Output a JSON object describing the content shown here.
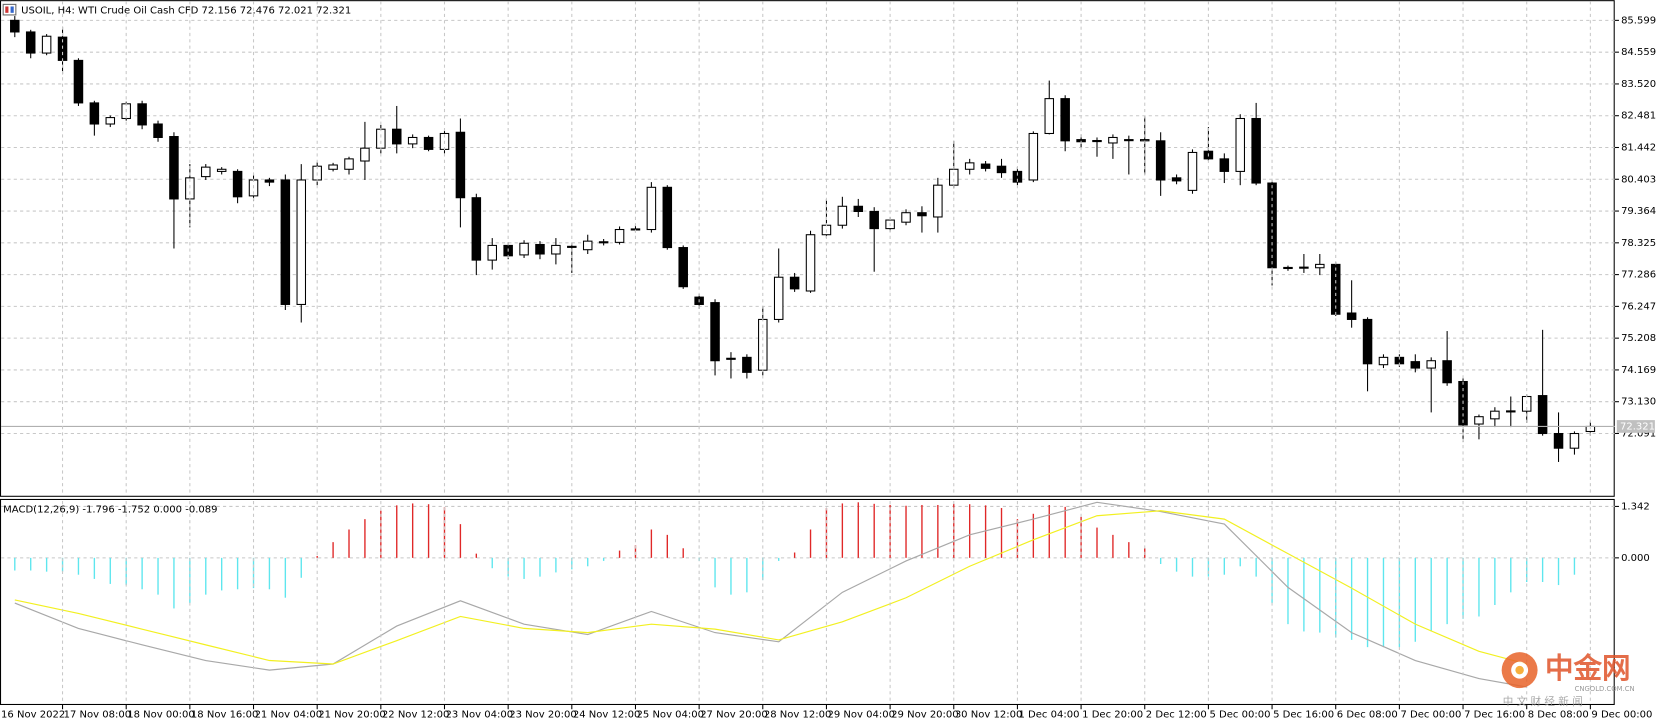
{
  "chart_data": [
    {
      "type": "candlestick",
      "title": "USOIL, H4:  WTI Crude Oil Cash CFD   72.156 72.476 72.021 72.321",
      "ylim": [
        70.02,
        86.26
      ],
      "yticks": [
        85.599,
        84.559,
        {
          "value": 83.52,
          "label": "83.520"
        },
        82.481,
        81.442,
        80.403,
        79.364,
        78.325,
        77.286,
        76.247,
        75.208,
        74.169,
        {
          "value": 73.13,
          "label": "73.130"
        },
        72.091
      ],
      "grid": true,
      "current_price": 72.321,
      "colors": {
        "up": "#ffffff",
        "down": "#000000",
        "outline": "#000000",
        "price_line": "#b0b0b0"
      },
      "open": [
        85.6,
        85.22,
        84.53,
        85.05,
        84.29,
        82.9,
        82.21,
        82.39,
        82.87,
        82.21,
        81.8,
        79.76,
        80.49,
        80.66,
        80.66,
        79.86,
        80.38,
        80.38,
        76.31,
        80.38,
        80.73,
        80.73,
        81.0,
        81.42,
        82.04,
        81.56,
        81.77,
        81.38,
        81.94,
        79.8,
        77.76,
        78.24,
        77.93,
        78.27,
        77.96,
        78.19,
        78.1,
        78.34,
        78.34,
        78.76,
        78.76,
        80.14,
        78.17,
        76.55,
        76.37,
        74.55,
        74.58,
        74.16,
        75.82,
        77.2,
        76.75,
        78.59,
        78.9,
        79.52,
        79.35,
        78.79,
        79.0,
        79.31,
        79.17,
        80.21,
        80.73,
        80.9,
        80.83,
        80.66,
        80.38,
        81.9,
        83.04,
        81.7,
        81.67,
        81.59,
        81.7,
        81.66,
        81.66,
        80.45,
        80.04,
        81.32,
        81.07,
        80.66,
        82.39,
        80.28,
        77.52,
        77.51,
        77.51,
        77.62,
        76.03,
        75.82,
        74.34,
        74.58,
        74.44,
        74.23,
        74.47,
        73.79,
        72.4,
        72.57,
        72.81,
        72.82,
        73.33,
        72.09,
        71.61,
        72.156
      ],
      "high": [
        85.74,
        85.29,
        85.15,
        85.39,
        84.36,
        82.97,
        82.49,
        82.94,
        82.97,
        82.32,
        81.94,
        80.9,
        80.9,
        80.8,
        80.73,
        80.56,
        80.45,
        80.56,
        80.9,
        80.97,
        80.94,
        81.14,
        82.28,
        82.18,
        82.8,
        81.87,
        81.83,
        82.01,
        82.39,
        79.93,
        78.48,
        78.34,
        78.41,
        78.38,
        78.48,
        78.31,
        78.59,
        78.45,
        78.86,
        78.9,
        80.31,
        80.21,
        78.24,
        76.65,
        76.48,
        74.75,
        74.68,
        76.24,
        78.14,
        77.34,
        78.72,
        79.76,
        79.83,
        79.76,
        79.49,
        79.17,
        79.42,
        79.52,
        80.45,
        81.66,
        81.07,
        81.0,
        81.07,
        80.8,
        81.97,
        83.63,
        83.15,
        81.87,
        81.77,
        81.87,
        81.83,
        82.46,
        81.94,
        80.56,
        81.38,
        82.11,
        81.25,
        82.53,
        82.9,
        80.38,
        77.58,
        77.96,
        77.96,
        77.69,
        77.1,
        75.89,
        74.68,
        74.68,
        74.68,
        74.58,
        75.44,
        73.89,
        72.71,
        72.95,
        73.3,
        73.37,
        75.48,
        72.78,
        72.16,
        72.476
      ],
      "low": [
        85.05,
        84.36,
        84.46,
        83.84,
        82.8,
        81.83,
        82.11,
        82.32,
        82.04,
        81.63,
        78.14,
        78.83,
        80.38,
        80.56,
        79.62,
        79.69,
        80.18,
        76.13,
        75.72,
        80.21,
        80.66,
        80.56,
        80.38,
        81.25,
        81.25,
        81.42,
        81.32,
        81.25,
        78.83,
        77.27,
        77.45,
        77.79,
        77.83,
        77.79,
        77.62,
        77.34,
        77.96,
        78.24,
        78.27,
        78.66,
        78.66,
        78.1,
        76.82,
        76.17,
        73.99,
        73.89,
        73.89,
        73.99,
        75.72,
        76.72,
        76.69,
        78.48,
        78.79,
        79.17,
        77.38,
        78.69,
        78.9,
        78.66,
        78.66,
        80.11,
        80.56,
        80.66,
        80.45,
        80.21,
        80.31,
        81.87,
        81.32,
        81.42,
        81.14,
        81.07,
        80.56,
        80.56,
        79.86,
        80.24,
        79.93,
        81.0,
        80.28,
        80.21,
        80.21,
        76.93,
        77.41,
        77.34,
        77.27,
        75.93,
        75.55,
        73.47,
        74.23,
        74.27,
        74.09,
        72.78,
        73.65,
        71.81,
        71.9,
        72.3,
        72.3,
        72.44,
        72.02,
        71.16,
        71.4,
        72.021
      ],
      "close": [
        85.22,
        84.53,
        85.08,
        84.29,
        82.9,
        82.21,
        82.42,
        82.87,
        82.18,
        81.77,
        79.76,
        80.45,
        80.8,
        80.73,
        79.83,
        80.38,
        80.31,
        76.31,
        80.38,
        80.83,
        80.87,
        81.07,
        81.42,
        82.04,
        81.56,
        81.77,
        81.38,
        81.9,
        79.8,
        77.76,
        78.24,
        77.9,
        78.31,
        77.96,
        78.24,
        78.21,
        78.38,
        78.36,
        78.76,
        78.78,
        80.14,
        78.17,
        76.89,
        76.31,
        74.47,
        74.53,
        74.09,
        75.82,
        77.2,
        76.82,
        78.59,
        78.9,
        79.52,
        79.35,
        78.79,
        79.07,
        79.31,
        79.21,
        80.21,
        80.73,
        80.94,
        80.76,
        80.62,
        80.31,
        81.9,
        83.04,
        81.66,
        81.63,
        81.65,
        81.77,
        81.69,
        81.7,
        80.38,
        80.35,
        81.28,
        81.07,
        80.66,
        82.39,
        80.28,
        77.51,
        77.5,
        77.53,
        77.62,
        75.99,
        75.82,
        74.37,
        74.58,
        74.37,
        74.23,
        74.47,
        73.75,
        72.37,
        72.64,
        72.82,
        72.83,
        73.3,
        72.09,
        71.61,
        72.09,
        72.321
      ]
    },
    {
      "type": "macd",
      "title": "MACD(12,26,9) -1.796 -1.752 0.000 -0.089",
      "ylim": [
        -3.84,
        1.51
      ],
      "yticks": [
        1.342,
        {
          "value": 0,
          "label": "0.000"
        }
      ],
      "grid": true,
      "colors": {
        "positive": "#e02828",
        "negative": "#5ee6ee"
      },
      "histogram": [
        -0.33,
        -0.33,
        -0.36,
        -0.36,
        -0.44,
        -0.55,
        -0.68,
        -0.71,
        -0.82,
        -0.96,
        -1.32,
        -1.18,
        -0.96,
        -0.85,
        -0.82,
        -0.79,
        -0.82,
        -1.04,
        -0.52,
        0.05,
        0.41,
        0.74,
        1.01,
        1.23,
        1.37,
        1.42,
        1.4,
        1.32,
        0.88,
        0.11,
        -0.27,
        -0.49,
        -0.55,
        -0.49,
        -0.38,
        -0.3,
        -0.22,
        -0.08,
        0.19,
        0.33,
        0.74,
        0.6,
        0.25,
        -0.08,
        -0.77,
        -0.96,
        -0.9,
        -0.58,
        -0.08,
        0.14,
        0.74,
        1.3,
        1.42,
        1.45,
        1.41,
        1.38,
        1.36,
        1.38,
        1.38,
        1.41,
        1.4,
        1.37,
        1.3,
        1.01,
        1.15,
        1.38,
        1.33,
        1.07,
        0.79,
        0.6,
        0.41,
        0.25,
        -0.16,
        -0.36,
        -0.49,
        -0.49,
        -0.44,
        -0.22,
        -0.49,
        -1.18,
        -1.73,
        -1.92,
        -1.95,
        -2.08,
        -2.14,
        -2.33,
        -2.33,
        -2.33,
        -2.19,
        -1.92,
        -1.73,
        -1.59,
        -1.53,
        -1.23,
        -0.9,
        -0.63,
        -0.63,
        -0.71,
        -0.44,
        null
      ],
      "lines": [
        {
          "color": "#a8a8a8",
          "x": [
            0,
            4,
            8,
            12,
            16,
            20,
            24,
            28,
            32,
            36,
            40,
            44,
            48,
            52,
            56,
            60,
            64,
            68,
            72,
            76,
            80,
            84,
            88,
            92,
            95
          ],
          "values": [
            -1.18,
            -1.84,
            -2.27,
            -2.68,
            -2.93,
            -2.77,
            -1.78,
            -1.12,
            -1.73,
            -2.0,
            -1.4,
            -1.95,
            -2.19,
            -0.9,
            -0.08,
            0.6,
            1.01,
            1.45,
            1.21,
            0.88,
            -0.77,
            -1.95,
            -2.68,
            -3.15,
            -3.37
          ]
        },
        {
          "color": "#f2f020",
          "x": [
            0,
            4,
            8,
            12,
            16,
            20,
            24,
            28,
            32,
            36,
            40,
            44,
            48,
            52,
            56,
            60,
            64,
            68,
            72,
            76,
            80,
            84,
            88,
            92,
            95
          ],
          "values": [
            -1.1,
            -1.45,
            -1.86,
            -2.27,
            -2.68,
            -2.77,
            -2.16,
            -1.53,
            -1.84,
            -1.95,
            -1.73,
            -1.86,
            -2.14,
            -1.67,
            -1.04,
            -0.22,
            0.47,
            1.1,
            1.23,
            1.01,
            0.11,
            -0.79,
            -1.73,
            -2.44,
            -2.77
          ]
        }
      ],
      "time_labels": [
        "16 Nov 2022",
        "17 Nov 08:00",
        "18 Nov 00:00",
        "18 Nov 16:00",
        "21 Nov 04:00",
        "21 Nov 20:00",
        "22 Nov 12:00",
        "23 Nov 04:00",
        "23 Nov 20:00",
        "24 Nov 12:00",
        "25 Nov 04:00",
        "27 Nov 20:00",
        "28 Nov 12:00",
        "29 Nov 04:00",
        "29 Nov 20:00",
        "30 Nov 12:00",
        "1 Dec 04:00",
        "1 Dec 20:00",
        "2 Dec 12:00",
        "5 Dec 00:00",
        "5 Dec 16:00",
        "6 Dec 08:00",
        "7 Dec 00:00",
        "7 Dec 16:00",
        "8 Dec 08:00",
        "9 Dec 00:00"
      ]
    }
  ],
  "watermark": {
    "name": "中金网",
    "tagline": "中 文 财 经 新 闻",
    "site": "CNGOLD.COM.CN"
  }
}
